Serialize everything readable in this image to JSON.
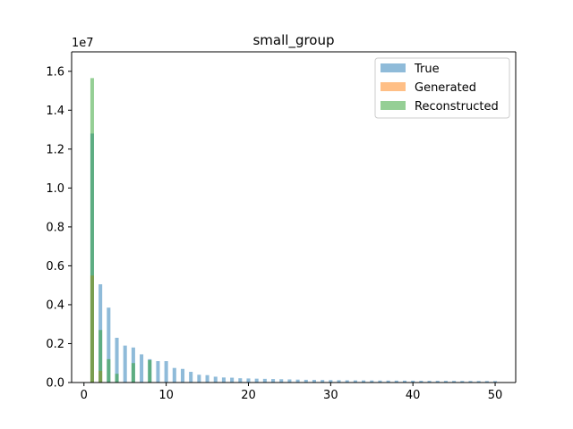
{
  "chart_data": {
    "type": "bar",
    "title": "small_group",
    "xlabel": "",
    "ylabel": "",
    "offset_label": "1e7",
    "xlim": [
      -1.5,
      52.5
    ],
    "ylim": [
      0,
      17000000
    ],
    "xticks": [
      0,
      10,
      20,
      30,
      40,
      50
    ],
    "yticks": [
      0,
      2000000,
      4000000,
      6000000,
      8000000,
      10000000,
      12000000,
      14000000,
      16000000
    ],
    "ytick_labels": [
      "0.0",
      "0.2",
      "0.4",
      "0.6",
      "0.8",
      "1.0",
      "1.2",
      "1.4",
      "1.6"
    ],
    "grid": false,
    "legend": "top-right",
    "series": [
      {
        "name": "True",
        "color": "#1f77b4",
        "opacity": 0.5,
        "x": [
          1,
          2,
          3,
          4,
          5,
          6,
          7,
          8,
          9,
          10,
          11,
          12,
          13,
          14,
          15,
          16,
          17,
          18,
          19,
          20,
          21,
          22,
          23,
          24,
          25,
          26,
          27,
          28,
          29,
          30,
          31,
          32,
          33,
          34,
          35,
          36,
          37,
          38,
          39,
          40,
          41,
          42,
          43,
          44,
          45,
          46,
          47,
          48,
          49,
          50
        ],
        "values": [
          12800000,
          5050000,
          3850000,
          2300000,
          1900000,
          1800000,
          1450000,
          1200000,
          1100000,
          1100000,
          750000,
          700000,
          550000,
          400000,
          380000,
          300000,
          260000,
          250000,
          220000,
          210000,
          200000,
          190000,
          180000,
          170000,
          160000,
          150000,
          140000,
          135000,
          130000,
          125000,
          120000,
          115000,
          110000,
          108000,
          105000,
          102000,
          100000,
          98000,
          96000,
          94000,
          92000,
          90000,
          88000,
          86000,
          84000,
          82000,
          80000,
          78000,
          76000,
          74000
        ]
      },
      {
        "name": "Generated",
        "color": "#ff7f0e",
        "opacity": 0.5,
        "x": [
          1,
          2
        ],
        "values": [
          5500000,
          600000
        ]
      },
      {
        "name": "Reconstructed",
        "color": "#2ca02c",
        "opacity": 0.5,
        "x": [
          1,
          2,
          3,
          4,
          6,
          8
        ],
        "values": [
          15650000,
          2700000,
          1200000,
          450000,
          1000000,
          1150000
        ]
      }
    ]
  }
}
